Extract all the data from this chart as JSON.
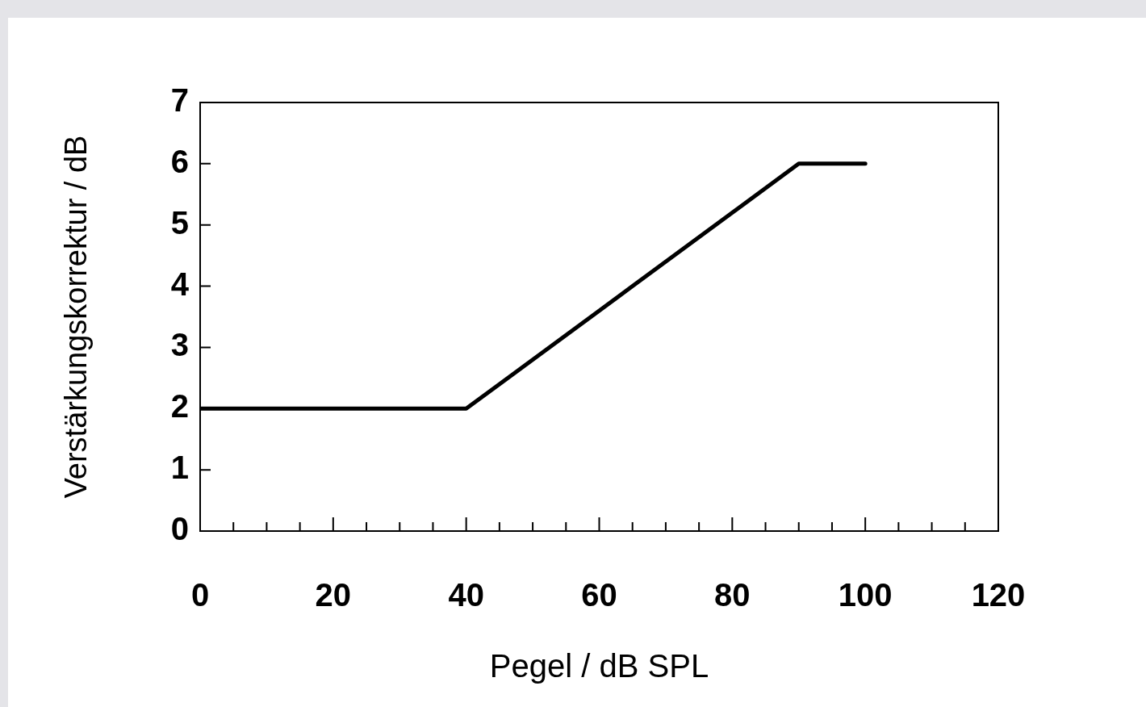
{
  "chart_data": {
    "type": "line",
    "xlabel": "Pegel / dB SPL",
    "ylabel": "Verstärkungskorrektur / dB",
    "x": [
      0,
      40,
      45,
      60,
      65,
      80,
      90,
      100
    ],
    "series": [
      {
        "color": "#000000",
        "values": [
          2,
          2,
          2.4,
          3.6,
          4,
          5.2,
          6,
          6
        ]
      }
    ],
    "xlim": [
      0,
      120
    ],
    "xticks": [
      0,
      {
        "value": 5,
        "label": null
      },
      {
        "value": 10,
        "label": null
      },
      {
        "value": 15,
        "label": null
      },
      20,
      {
        "value": 25,
        "label": null
      },
      {
        "value": 30,
        "label": null
      },
      {
        "value": 35,
        "label": null
      },
      40,
      {
        "value": 45,
        "label": null
      },
      {
        "value": 50,
        "label": null
      },
      {
        "value": 55,
        "label": null
      },
      60,
      {
        "value": 65,
        "label": null
      },
      {
        "value": 70,
        "label": null
      },
      {
        "value": 75,
        "label": null
      },
      80,
      {
        "value": 85,
        "label": null
      },
      {
        "value": 90,
        "label": null
      },
      {
        "value": 95,
        "label": null
      },
      100,
      {
        "value": 105,
        "label": null
      },
      {
        "value": 110,
        "label": null
      },
      {
        "value": 115,
        "label": null
      },
      120
    ],
    "ylim": [
      0,
      7
    ],
    "yticks": [
      0,
      1,
      2,
      3,
      4,
      5,
      6,
      7
    ],
    "grid": false,
    "legend": false,
    "marker": "none",
    "line_style": "solid"
  }
}
